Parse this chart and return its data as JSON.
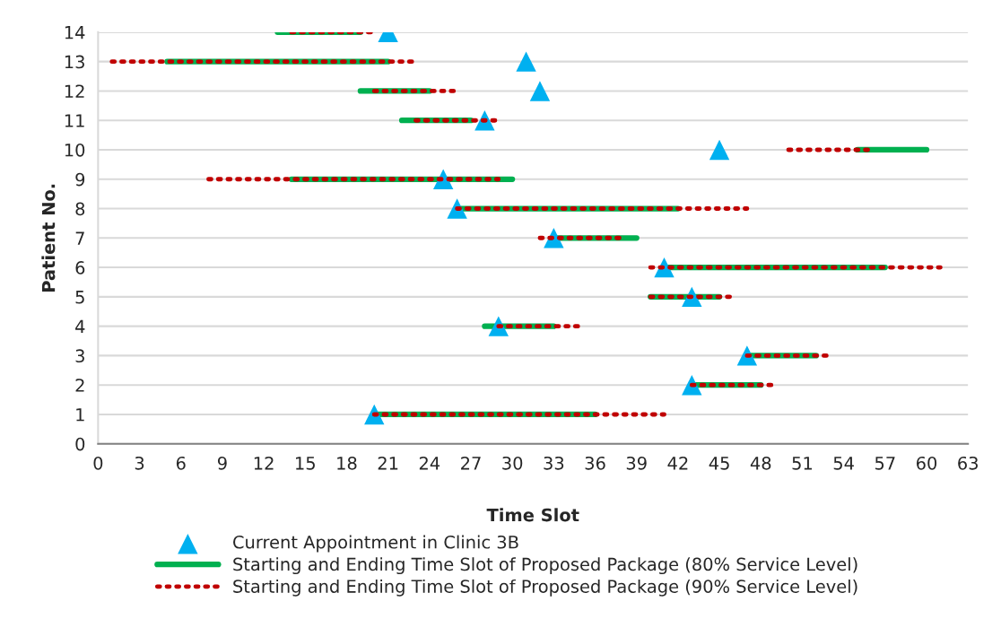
{
  "chart_data": {
    "type": "line",
    "xlabel": "Time Slot",
    "ylabel": "Patient No.",
    "xlim": [
      0,
      63
    ],
    "xticks": [
      0,
      3,
      6,
      9,
      12,
      15,
      18,
      21,
      24,
      27,
      30,
      33,
      36,
      39,
      42,
      45,
      48,
      51,
      54,
      57,
      60,
      63
    ],
    "ylim": [
      0,
      14
    ],
    "yticks": [
      0,
      1,
      2,
      3,
      4,
      5,
      6,
      7,
      8,
      9,
      10,
      11,
      12,
      13,
      14
    ],
    "grid": "y",
    "legend": "bottom",
    "series": [
      {
        "name": "Current Appointment in Clinic 3B",
        "type": "scatter",
        "marker": "triangle",
        "color": "#00b0f0",
        "x": [
          20,
          43,
          47,
          29,
          43,
          41,
          33,
          26,
          25,
          45,
          28,
          32,
          31,
          21
        ],
        "values": [
          1,
          2,
          3,
          4,
          5,
          6,
          7,
          8,
          9,
          10,
          11,
          12,
          13,
          14
        ]
      },
      {
        "name": "Starting and Ending Time Slot of Proposed Package (80% Service Level)",
        "line_style": "solid",
        "color": "#00b050",
        "x": [
          20,
          36,
          null,
          43,
          48,
          null,
          47,
          52,
          null,
          28,
          33,
          null,
          40,
          45,
          null,
          41,
          57,
          null,
          33,
          39,
          null,
          26,
          42,
          null,
          14,
          30,
          null,
          55,
          60,
          null,
          22,
          27,
          null,
          19,
          24,
          null,
          5,
          21,
          null,
          13,
          19
        ],
        "values": [
          1,
          1,
          null,
          2,
          2,
          null,
          3,
          3,
          null,
          4,
          4,
          null,
          5,
          5,
          null,
          6,
          6,
          null,
          7,
          7,
          null,
          8,
          8,
          null,
          9,
          9,
          null,
          10,
          10,
          null,
          11,
          11,
          null,
          12,
          12,
          null,
          13,
          13,
          null,
          14,
          14
        ]
      },
      {
        "name": "Starting and Ending Time Slot of Proposed Package (90% Service Level)",
        "line_style": "dotted",
        "color": "#c00000",
        "x": [
          20,
          41,
          null,
          43,
          49,
          null,
          47,
          53,
          null,
          29,
          35,
          null,
          40,
          46,
          null,
          40,
          61,
          null,
          32,
          38,
          null,
          26,
          47,
          null,
          8,
          29,
          null,
          50,
          56,
          null,
          23,
          29,
          null,
          20,
          26,
          null,
          1,
          23,
          null,
          14,
          20
        ],
        "values": [
          1,
          1,
          null,
          2,
          2,
          null,
          3,
          3,
          null,
          4,
          4,
          null,
          5,
          5,
          null,
          6,
          6,
          null,
          7,
          7,
          null,
          8,
          8,
          null,
          9,
          9,
          null,
          10,
          10,
          null,
          11,
          11,
          null,
          12,
          12,
          null,
          13,
          13,
          null,
          14,
          14
        ]
      }
    ]
  }
}
